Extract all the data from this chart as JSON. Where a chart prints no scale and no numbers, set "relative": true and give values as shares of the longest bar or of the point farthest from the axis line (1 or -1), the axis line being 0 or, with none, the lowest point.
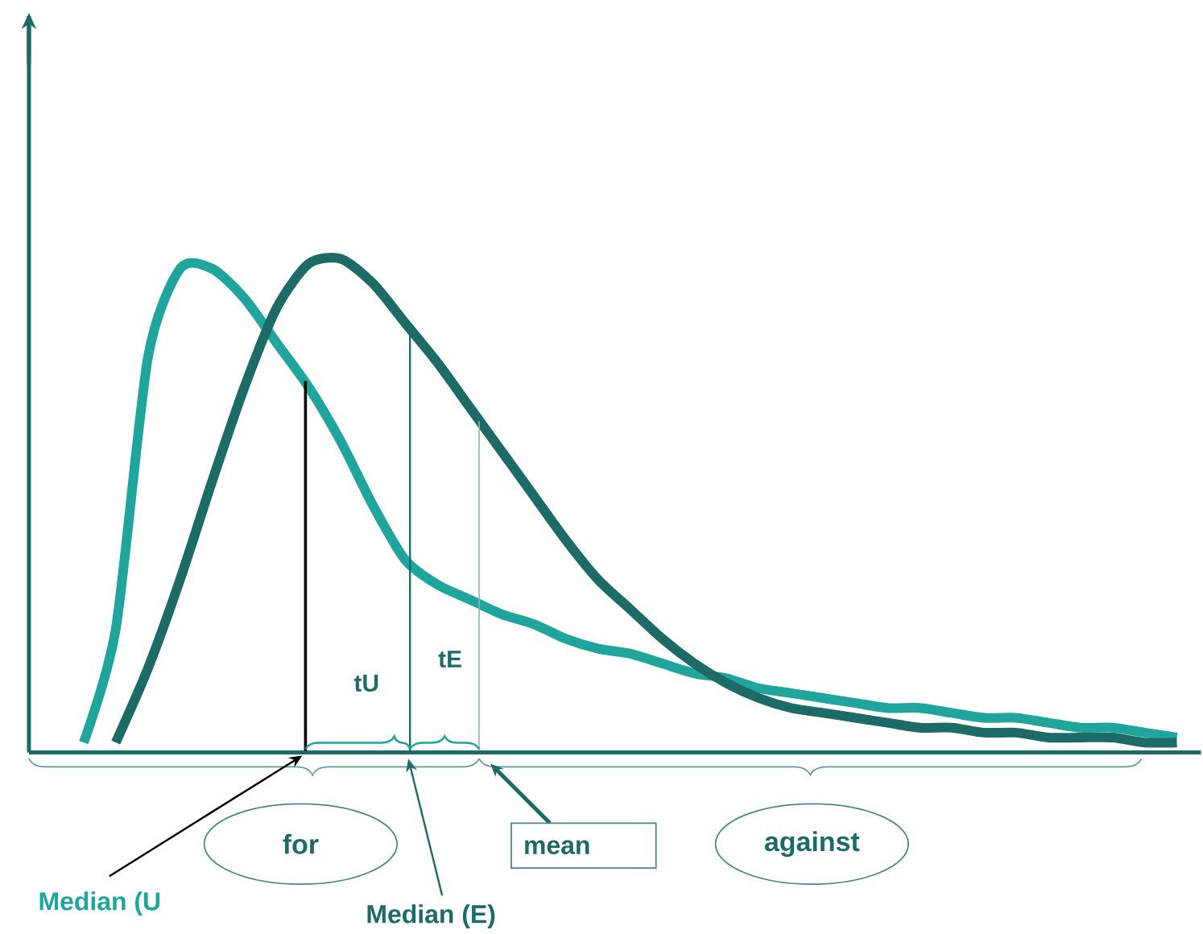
{
  "chart_data": {
    "type": "line",
    "relative": true,
    "categories": [
      null,
      null,
      null,
      null,
      null,
      null,
      null,
      null,
      null,
      null,
      null,
      null,
      null,
      null,
      null,
      null,
      null,
      null,
      null,
      null,
      null,
      null,
      null,
      null,
      null,
      null,
      null,
      null,
      null,
      null,
      null,
      null,
      null,
      null,
      null
    ],
    "series": [
      {
        "color": "#1fa59c",
        "values": [
          0.02,
          0.25,
          0.8,
          0.98,
          0.98,
          0.92,
          0.83,
          0.74,
          0.63,
          0.5,
          0.39,
          0.34,
          0.31,
          0.28,
          0.26,
          0.23,
          0.21,
          0.2,
          0.18,
          0.16,
          0.15,
          0.13,
          0.12,
          0.11,
          0.1,
          0.09,
          0.09,
          0.08,
          0.07,
          0.07,
          0.06,
          0.05,
          0.05,
          0.04,
          0.03
        ]
      },
      {
        "color": "#1d6b66",
        "values": [
          null,
          0.02,
          0.17,
          0.35,
          0.55,
          0.74,
          0.9,
          0.99,
          1.0,
          0.95,
          0.87,
          0.79,
          0.7,
          0.61,
          0.52,
          0.43,
          0.35,
          0.29,
          0.23,
          0.18,
          0.14,
          0.11,
          0.09,
          0.08,
          0.07,
          0.06,
          0.05,
          0.05,
          0.04,
          0.04,
          0.03,
          0.03,
          0.03,
          0.02,
          0.02
        ]
      }
    ],
    "annotations": [
      "tU",
      "tE",
      "for",
      "against",
      "Median (U",
      "Median (E)",
      "mean"
    ],
    "marker": "none",
    "line_style": "solid"
  }
}
